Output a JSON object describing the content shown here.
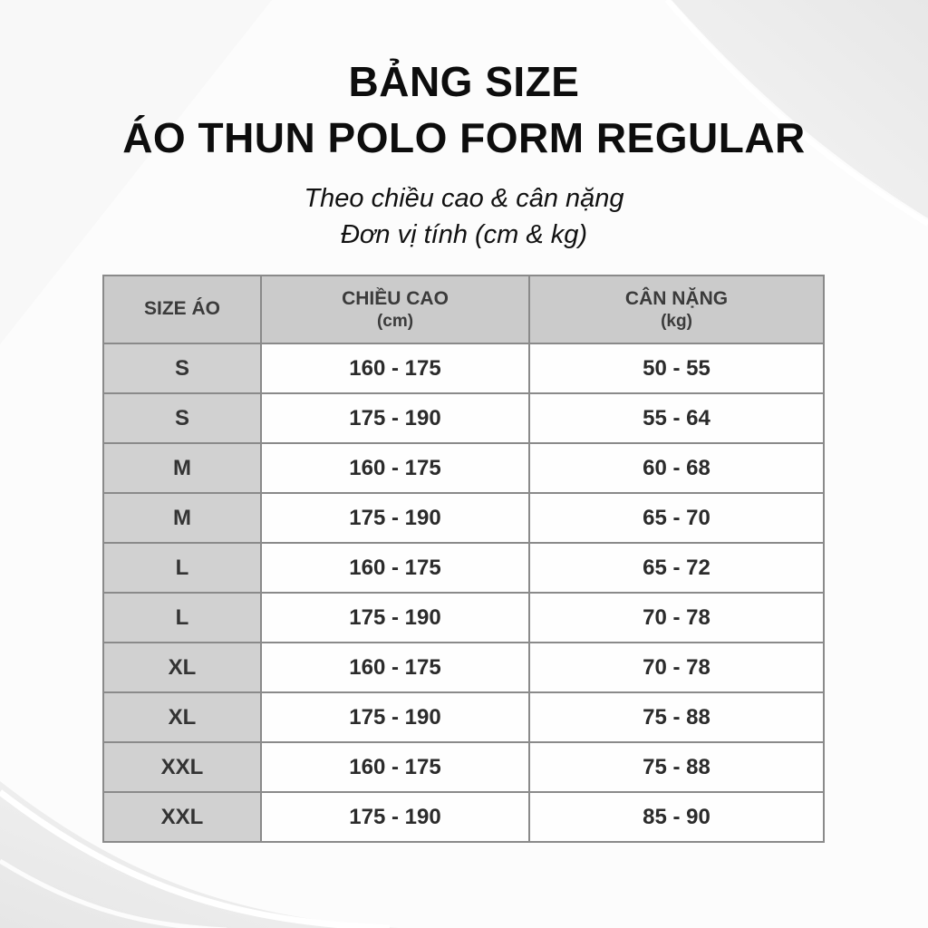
{
  "page": {
    "title_line1": "BẢNG SIZE",
    "title_line2": "ÁO THUN POLO FORM REGULAR",
    "subtitle_line1": "Theo chiều cao & cân nặng",
    "subtitle_line2": "Đơn vị tính (cm & kg)"
  },
  "table": {
    "columns": [
      "SIZE ÁO",
      "CHIỀU CAO",
      "CÂN NẶNG"
    ],
    "column_units": [
      "",
      "(cm)",
      "(kg)"
    ],
    "rows": [
      {
        "size": "S",
        "height": "160 - 175",
        "weight": "50 - 55"
      },
      {
        "size": "S",
        "height": "175 - 190",
        "weight": "55 - 64"
      },
      {
        "size": "M",
        "height": "160 - 175",
        "weight": "60 - 68"
      },
      {
        "size": "M",
        "height": "175 - 190",
        "weight": "65 - 70"
      },
      {
        "size": "L",
        "height": "160 - 175",
        "weight": "65 - 72"
      },
      {
        "size": "L",
        "height": "175 - 190",
        "weight": "70 - 78"
      },
      {
        "size": "XL",
        "height": "160 - 175",
        "weight": "70 - 78"
      },
      {
        "size": "XL",
        "height": "175 - 190",
        "weight": "75 - 88"
      },
      {
        "size": "XXL",
        "height": "160 - 175",
        "weight": "75 - 88"
      },
      {
        "size": "XXL",
        "height": "175 - 190",
        "weight": "85 - 90"
      }
    ]
  },
  "colors": {
    "header_fill": "#cbcbcb",
    "size_column_fill": "#d1d1d1",
    "cell_fill": "#fefefe",
    "border": "#8a8a8a",
    "title_text": "#0d0d0d",
    "header_text": "#3b3b3b",
    "cell_text": "#2b2b2b",
    "background": "#fcfcfc",
    "swoosh_fill": "#ececec",
    "swoosh_line": "#ffffff"
  }
}
